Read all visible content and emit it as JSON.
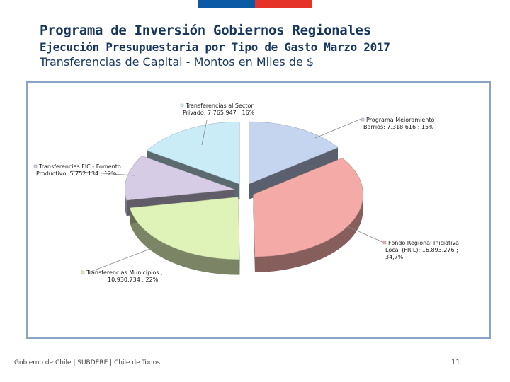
{
  "header": {
    "title": "Programa de Inversión Gobiernos Regionales",
    "subtitle": "Ejecución Presupuestaria por Tipo de Gasto Marzo 2017",
    "subtitle2": "Transferencias de Capital - Montos en Miles de $"
  },
  "colors": {
    "flag_blue": "#0b5aa6",
    "flag_red": "#e5332a",
    "title": "#17375e"
  },
  "chart_data": {
    "type": "pie",
    "style": "3d-exploded",
    "slices": [
      {
        "label_line1": "Programa Mejoramiento",
        "label_line2": "Barrios;  7.318.616 ; 15%",
        "label_line3": "",
        "value": 7318616,
        "percent": 15,
        "color": "#c5d4ef"
      },
      {
        "label_line1": "Fondo Regional Iniciativa",
        "label_line2": "Local (FRIL);  16.893.276 ;",
        "label_line3": "34,7%",
        "value": 16893276,
        "percent": 34.7,
        "color": "#f4aaa6"
      },
      {
        "label_line1": "Transferencias Municipios ;",
        "label_line2": "10.930.734 ; 22%",
        "label_line3": "",
        "value": 10930734,
        "percent": 22,
        "color": "#dff2b8"
      },
      {
        "label_line1": "Transferencias FIC - Fomento",
        "label_line2": "Productivo;  5.752.134 ; 12%",
        "label_line3": "",
        "value": 5752134,
        "percent": 12,
        "color": "#d6cce6"
      },
      {
        "label_line1": "Transferencias al Sector",
        "label_line2": "Privado;  7.765.947 ; 16%",
        "label_line3": "",
        "value": 7765947,
        "percent": 16,
        "color": "#c9ecf6"
      }
    ]
  },
  "footer": {
    "text": "Gobierno de Chile | SUBDERE | Chile de Todos",
    "page": "11"
  }
}
